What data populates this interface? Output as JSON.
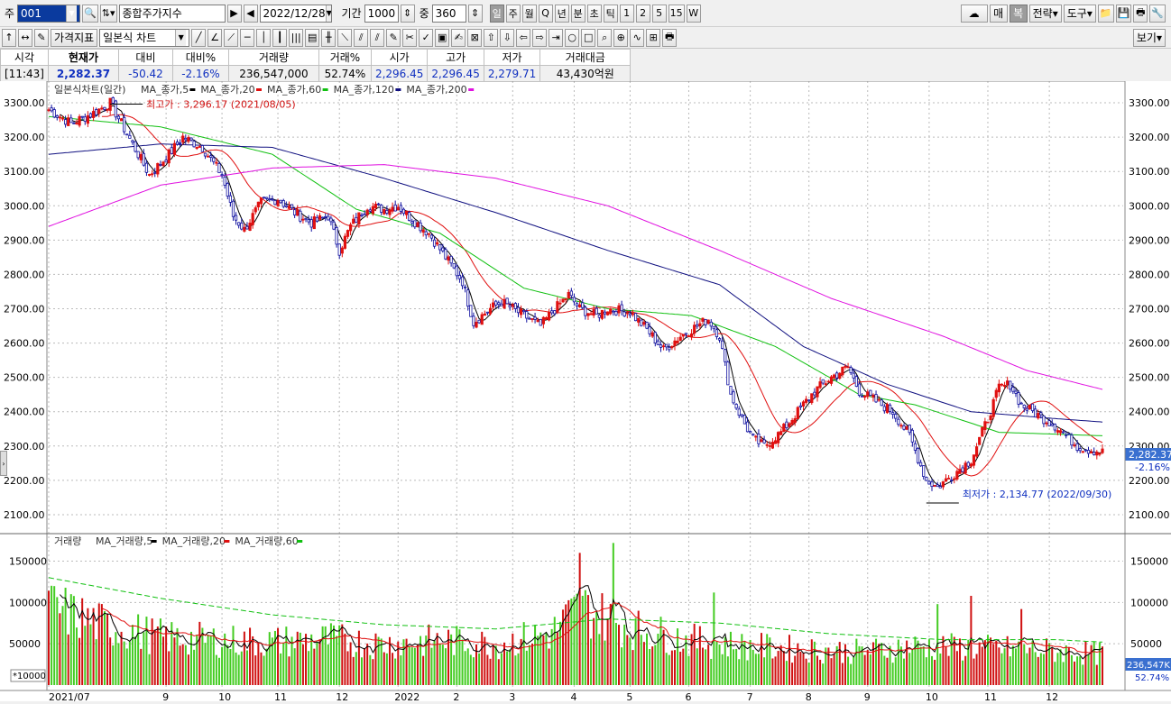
{
  "toolbar1": {
    "code_label": "주",
    "code_value": "001",
    "name_value": "종합주가지수",
    "date_value": "2022/12/28",
    "period_label": "기간",
    "period_value": "1000",
    "zoom_label": "중",
    "zoom_value": "360",
    "timeframes": [
      "일",
      "주",
      "월",
      "Q",
      "년",
      "분",
      "초",
      "틱",
      "1",
      "2",
      "5",
      "15",
      "W"
    ],
    "active_timeframe": "일",
    "right_buttons": [
      "매",
      "복",
      "전략",
      "도구"
    ]
  },
  "toolbar2": {
    "indicator_label": "가격지표",
    "chart_type_value": "일본식 차트",
    "view_button": "보기"
  },
  "quote": {
    "headers": [
      "시각",
      "현재가",
      "대비",
      "대비%",
      "거래량",
      "거래%",
      "시가",
      "고가",
      "저가",
      "거래대금"
    ],
    "values": [
      "[11:43]",
      "2,282.37",
      "-50.42",
      "-2.16%",
      "236,547,000",
      "52.74%",
      "2,296.45",
      "2,296.45",
      "2,279.71",
      "43,430억원"
    ]
  },
  "price_panel": {
    "legend_title": "일본식차트(일간)",
    "legend_items": [
      {
        "label": "MA_종가,5",
        "color": "#000000"
      },
      {
        "label": "MA_종가,20",
        "color": "#e01010"
      },
      {
        "label": "MA_종가,60",
        "color": "#10c010"
      },
      {
        "label": "MA_종가,120",
        "color": "#101080"
      },
      {
        "label": "MA_종가,200",
        "color": "#e010e0"
      }
    ],
    "high_annotation": "최고가 : 3,296.17 (2021/08/05)",
    "low_annotation": "최저가 : 2,134.77 (2022/09/30)",
    "current_price_tag": "2,282.37",
    "current_change_tag": "-2.16%"
  },
  "volume_panel": {
    "legend_title": "거래량",
    "legend_items": [
      {
        "label": "MA_거래량,5",
        "color": "#000000"
      },
      {
        "label": "MA_거래량,20",
        "color": "#e01010"
      },
      {
        "label": "MA_거래량,60",
        "color": "#10c010"
      }
    ],
    "scale_note": "*10000",
    "current_volume_tag": "236,547K",
    "current_pct_tag": "52.74%"
  },
  "colors": {
    "up": "#e01010",
    "down": "#1010a0",
    "vol_up": "#d01010",
    "vol_down": "#44cc22"
  },
  "chart_data": [
    {
      "type": "candlestick",
      "title": "일본식차트(일간)",
      "ylim": [
        2050,
        3350
      ],
      "y_ticks": [
        2100,
        2200,
        2300,
        2400,
        2500,
        2600,
        2700,
        2800,
        2900,
        3000,
        3100,
        3200,
        3300
      ],
      "y_tick_labels": [
        "2100.00",
        "2200.00",
        "2300.00",
        "2400.00",
        "2500.00",
        "2600.00",
        "2700.00",
        "2800.00",
        "2900.00",
        "3000.00",
        "3100.00",
        "3200.00",
        "3300.00"
      ],
      "x_month_labels": [
        "2021/07",
        "9",
        "10",
        "11",
        "12",
        "2022",
        "2",
        "3",
        "4",
        "5",
        "6",
        "7",
        "8",
        "9",
        "10",
        "11",
        "12"
      ],
      "x_month_index": [
        0,
        42,
        62,
        82,
        104,
        125,
        146,
        166,
        188,
        208,
        229,
        251,
        272,
        293,
        315,
        336,
        358
      ],
      "n_days": 378,
      "close_path": [
        [
          0,
          3280
        ],
        [
          8,
          3240
        ],
        [
          16,
          3270
        ],
        [
          22,
          3300
        ],
        [
          30,
          3180
        ],
        [
          36,
          3090
        ],
        [
          42,
          3140
        ],
        [
          48,
          3200
        ],
        [
          55,
          3170
        ],
        [
          62,
          3090
        ],
        [
          66,
          2970
        ],
        [
          70,
          2930
        ],
        [
          76,
          3010
        ],
        [
          82,
          3020
        ],
        [
          88,
          2980
        ],
        [
          94,
          2950
        ],
        [
          100,
          2970
        ],
        [
          104,
          2870
        ],
        [
          108,
          2940
        ],
        [
          114,
          3000
        ],
        [
          120,
          2990
        ],
        [
          125,
          3000
        ],
        [
          130,
          2960
        ],
        [
          136,
          2920
        ],
        [
          142,
          2850
        ],
        [
          148,
          2780
        ],
        [
          152,
          2660
        ],
        [
          158,
          2700
        ],
        [
          162,
          2720
        ],
        [
          166,
          2700
        ],
        [
          170,
          2680
        ],
        [
          176,
          2650
        ],
        [
          180,
          2690
        ],
        [
          186,
          2740
        ],
        [
          190,
          2700
        ],
        [
          196,
          2680
        ],
        [
          200,
          2700
        ],
        [
          208,
          2690
        ],
        [
          214,
          2640
        ],
        [
          220,
          2580
        ],
        [
          226,
          2620
        ],
        [
          232,
          2650
        ],
        [
          236,
          2670
        ],
        [
          240,
          2620
        ],
        [
          244,
          2450
        ],
        [
          248,
          2380
        ],
        [
          252,
          2320
        ],
        [
          256,
          2300
        ],
        [
          262,
          2340
        ],
        [
          268,
          2400
        ],
        [
          274,
          2460
        ],
        [
          280,
          2500
        ],
        [
          286,
          2530
        ],
        [
          290,
          2460
        ],
        [
          296,
          2430
        ],
        [
          302,
          2400
        ],
        [
          308,
          2330
        ],
        [
          314,
          2200
        ],
        [
          318,
          2180
        ],
        [
          324,
          2220
        ],
        [
          330,
          2260
        ],
        [
          336,
          2380
        ],
        [
          340,
          2470
        ],
        [
          344,
          2480
        ],
        [
          348,
          2420
        ],
        [
          352,
          2400
        ],
        [
          356,
          2380
        ],
        [
          360,
          2360
        ],
        [
          364,
          2330
        ],
        [
          368,
          2300
        ],
        [
          372,
          2290
        ],
        [
          377,
          2282
        ]
      ],
      "ma_200_path": [
        [
          0,
          2940
        ],
        [
          40,
          3060
        ],
        [
          80,
          3110
        ],
        [
          120,
          3120
        ],
        [
          160,
          3080
        ],
        [
          200,
          3000
        ],
        [
          240,
          2870
        ],
        [
          280,
          2730
        ],
        [
          320,
          2620
        ],
        [
          350,
          2520
        ],
        [
          377,
          2465
        ]
      ],
      "ma_120_path": [
        [
          0,
          3150
        ],
        [
          40,
          3180
        ],
        [
          80,
          3170
        ],
        [
          120,
          3080
        ],
        [
          160,
          2980
        ],
        [
          200,
          2870
        ],
        [
          240,
          2770
        ],
        [
          270,
          2590
        ],
        [
          300,
          2480
        ],
        [
          330,
          2400
        ],
        [
          360,
          2380
        ],
        [
          377,
          2370
        ]
      ],
      "ma_60_path": [
        [
          0,
          3260
        ],
        [
          40,
          3230
        ],
        [
          80,
          3150
        ],
        [
          110,
          2990
        ],
        [
          140,
          2920
        ],
        [
          170,
          2760
        ],
        [
          200,
          2700
        ],
        [
          230,
          2680
        ],
        [
          260,
          2590
        ],
        [
          290,
          2450
        ],
        [
          310,
          2420
        ],
        [
          340,
          2340
        ],
        [
          377,
          2330
        ]
      ]
    },
    {
      "type": "bar",
      "title": "거래량",
      "ylim": [
        0,
        180000
      ],
      "y_ticks": [
        50000,
        100000,
        150000
      ],
      "y_tick_labels": [
        "50000",
        "100000",
        "150000"
      ],
      "volume_profile": [
        [
          0,
          105000
        ],
        [
          20,
          80000
        ],
        [
          40,
          65000
        ],
        [
          60,
          60000
        ],
        [
          80,
          58000
        ],
        [
          100,
          62000
        ],
        [
          120,
          55000
        ],
        [
          140,
          60000
        ],
        [
          160,
          55000
        ],
        [
          180,
          70000
        ],
        [
          190,
          105000
        ],
        [
          200,
          90000
        ],
        [
          210,
          75000
        ],
        [
          230,
          60000
        ],
        [
          250,
          52000
        ],
        [
          270,
          48000
        ],
        [
          290,
          45000
        ],
        [
          310,
          52000
        ],
        [
          330,
          50000
        ],
        [
          350,
          48000
        ],
        [
          377,
          42000
        ]
      ],
      "spikes": [
        [
          190,
          160000
        ],
        [
          202,
          172000
        ],
        [
          238,
          112000
        ],
        [
          318,
          98000
        ],
        [
          330,
          108000
        ],
        [
          348,
          92000
        ]
      ],
      "ma_60_path": [
        [
          0,
          130000
        ],
        [
          40,
          105000
        ],
        [
          80,
          85000
        ],
        [
          120,
          73000
        ],
        [
          160,
          68000
        ],
        [
          200,
          80000
        ],
        [
          240,
          75000
        ],
        [
          280,
          62000
        ],
        [
          320,
          55000
        ],
        [
          360,
          55000
        ],
        [
          377,
          52000
        ]
      ]
    }
  ]
}
